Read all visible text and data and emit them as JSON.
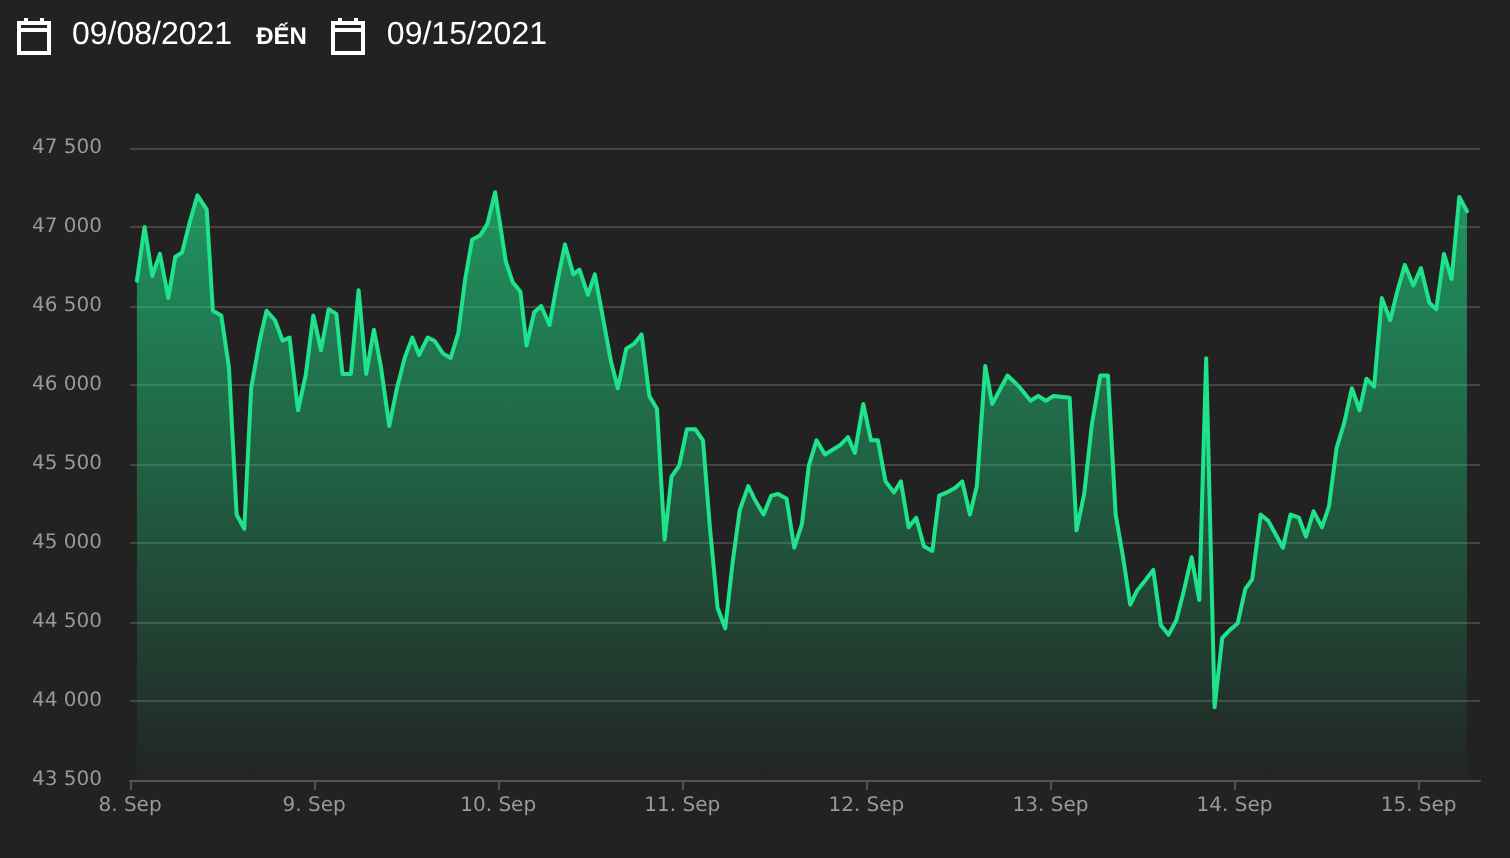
{
  "chart_data": {
    "type": "area",
    "annotations": [
      "09/08/2021",
      "ĐẾN",
      "09/15/2021"
    ],
    "x": [
      "2021-09-08T00:54",
      "2021-09-08T01:54",
      "2021-09-08T02:54",
      "2021-09-08T03:54",
      "2021-09-08T05:00",
      "2021-09-08T05:54",
      "2021-09-08T06:48",
      "2021-09-08T07:54",
      "2021-09-08T08:48",
      "2021-09-08T10:00",
      "2021-09-08T10:48",
      "2021-09-08T11:54",
      "2021-09-08T12:54",
      "2021-09-08T13:54",
      "2021-09-08T14:54",
      "2021-09-08T15:48",
      "2021-09-08T16:54",
      "2021-09-08T17:48",
      "2021-09-08T18:54",
      "2021-09-08T19:54",
      "2021-09-08T20:48",
      "2021-09-08T21:54",
      "2021-09-08T22:54",
      "2021-09-08T23:54",
      "2021-09-09T00:54",
      "2021-09-09T01:54",
      "2021-09-09T02:54",
      "2021-09-09T03:42",
      "2021-09-09T04:48",
      "2021-09-09T05:48",
      "2021-09-09T06:48",
      "2021-09-09T07:48",
      "2021-09-09T08:42",
      "2021-09-09T09:48",
      "2021-09-09T10:48",
      "2021-09-09T11:48",
      "2021-09-09T12:48",
      "2021-09-09T13:42",
      "2021-09-09T14:48",
      "2021-09-09T15:42",
      "2021-09-09T16:48",
      "2021-09-09T17:48",
      "2021-09-09T18:48",
      "2021-09-09T19:42",
      "2021-09-09T20:36",
      "2021-09-09T21:42",
      "2021-09-09T22:36",
      "2021-09-09T23:36",
      "2021-09-10T01:00",
      "2021-09-10T01:54",
      "2021-09-10T02:54",
      "2021-09-10T03:42",
      "2021-09-10T04:42",
      "2021-09-10T05:36",
      "2021-09-10T06:42",
      "2021-09-10T07:42",
      "2021-09-10T08:42",
      "2021-09-10T09:48",
      "2021-09-10T10:36",
      "2021-09-10T11:42",
      "2021-09-10T12:36",
      "2021-09-10T13:36",
      "2021-09-10T14:42",
      "2021-09-10T15:36",
      "2021-09-10T16:42",
      "2021-09-10T17:42",
      "2021-09-10T18:42",
      "2021-09-10T19:42",
      "2021-09-10T20:42",
      "2021-09-10T21:42",
      "2021-09-10T22:36",
      "2021-09-10T23:36",
      "2021-09-11T00:36",
      "2021-09-11T01:42",
      "2021-09-11T02:42",
      "2021-09-11T03:36",
      "2021-09-11T04:36",
      "2021-09-11T05:36",
      "2021-09-11T06:36",
      "2021-09-11T07:30",
      "2021-09-11T08:36",
      "2021-09-11T09:30",
      "2021-09-11T10:36",
      "2021-09-11T11:36",
      "2021-09-11T12:30",
      "2021-09-11T13:36",
      "2021-09-11T14:36",
      "2021-09-11T15:36",
      "2021-09-11T16:30",
      "2021-09-11T17:30",
      "2021-09-11T18:36",
      "2021-09-11T19:36",
      "2021-09-11T20:36",
      "2021-09-11T21:36",
      "2021-09-11T22:30",
      "2021-09-11T23:36",
      "2021-09-12T00:36",
      "2021-09-12T01:30",
      "2021-09-12T02:30",
      "2021-09-12T03:36",
      "2021-09-12T04:30",
      "2021-09-12T05:30",
      "2021-09-12T06:30",
      "2021-09-12T07:30",
      "2021-09-12T08:36",
      "2021-09-12T09:30",
      "2021-09-12T10:30",
      "2021-09-12T11:36",
      "2021-09-12T12:30",
      "2021-09-12T13:30",
      "2021-09-12T14:24",
      "2021-09-12T15:30",
      "2021-09-12T16:24",
      "2021-09-12T18:24",
      "2021-09-12T19:54",
      "2021-09-12T21:24",
      "2021-09-12T22:24",
      "2021-09-12T23:24",
      "2021-09-13T00:24",
      "2021-09-13T02:30",
      "2021-09-13T03:24",
      "2021-09-13T04:24",
      "2021-09-13T05:24",
      "2021-09-13T06:30",
      "2021-09-13T07:30",
      "2021-09-13T08:30",
      "2021-09-13T09:24",
      "2021-09-13T10:24",
      "2021-09-13T11:18",
      "2021-09-13T12:18",
      "2021-09-13T13:24",
      "2021-09-13T14:24",
      "2021-09-13T15:24",
      "2021-09-13T16:24",
      "2021-09-13T17:24",
      "2021-09-13T18:24",
      "2021-09-13T19:24",
      "2021-09-13T20:18",
      "2021-09-13T21:24",
      "2021-09-13T22:24",
      "2021-09-13T23:24",
      "2021-09-14T00:24",
      "2021-09-14T01:24",
      "2021-09-14T02:18",
      "2021-09-14T03:24",
      "2021-09-14T04:24",
      "2021-09-14T05:18",
      "2021-09-14T06:18",
      "2021-09-14T07:18",
      "2021-09-14T08:24",
      "2021-09-14T09:18",
      "2021-09-14T10:18",
      "2021-09-14T11:24",
      "2021-09-14T12:18",
      "2021-09-14T13:18",
      "2021-09-14T14:18",
      "2021-09-14T15:18",
      "2021-09-14T16:18",
      "2021-09-14T17:12",
      "2021-09-14T18:12",
      "2021-09-14T19:12",
      "2021-09-14T20:18",
      "2021-09-14T21:12",
      "2021-09-14T22:12",
      "2021-09-14T23:18",
      "2021-09-15T00:18",
      "2021-09-15T01:24",
      "2021-09-15T02:18",
      "2021-09-15T03:18",
      "2021-09-15T04:18",
      "2021-09-15T05:18",
      "2021-09-15T06:18"
    ],
    "series": [
      {
        "color": "#1ee38a",
        "values": [
          46660,
          47000,
          46690,
          46830,
          46550,
          46810,
          46840,
          47050,
          47200,
          47110,
          46470,
          46440,
          46110,
          45180,
          45090,
          45980,
          46280,
          46470,
          46410,
          46280,
          46300,
          45840,
          46060,
          46440,
          46220,
          46480,
          46450,
          46070,
          46070,
          46600,
          46070,
          46350,
          46120,
          45740,
          45980,
          46170,
          46300,
          46190,
          46300,
          46280,
          46200,
          46170,
          46330,
          46670,
          46920,
          46950,
          47020,
          47220,
          46780,
          46650,
          46590,
          46250,
          46460,
          46500,
          46380,
          46650,
          46890,
          46700,
          46730,
          46570,
          46700,
          46440,
          46150,
          45980,
          46230,
          46260,
          46320,
          45930,
          45850,
          45020,
          45420,
          45490,
          45720,
          45720,
          45650,
          45100,
          44590,
          44460,
          44890,
          45210,
          45360,
          45270,
          45180,
          45300,
          45310,
          45280,
          44970,
          45120,
          45490,
          45650,
          45560,
          45590,
          45620,
          45670,
          45570,
          45880,
          45650,
          45650,
          45390,
          45320,
          45390,
          45100,
          45160,
          44980,
          44950,
          45300,
          45320,
          45350,
          45390,
          45180,
          45360,
          46120,
          45880,
          46060,
          45990,
          45900,
          45930,
          45900,
          45930,
          45920,
          45080,
          45310,
          45750,
          46060,
          46060,
          45180,
          44930,
          44610,
          44700,
          44760,
          44830,
          44480,
          44420,
          44510,
          44700,
          44910,
          44640,
          46170,
          43960,
          44400,
          44450,
          44490,
          44710,
          44770,
          45180,
          45140,
          45060,
          44970,
          45180,
          45160,
          45040,
          45200,
          45100,
          45230,
          45600,
          45760,
          45980,
          45840,
          46040,
          45990,
          46550,
          46410,
          46590,
          46760,
          46630,
          46740,
          46520,
          46480,
          46830,
          46670,
          47190,
          47100
        ]
      }
    ],
    "xlim": [
      "2021-09-08",
      "2021-09-15T08:00"
    ],
    "xticks": [
      {
        "value": "2021-09-08",
        "label": "8. Sep"
      },
      {
        "value": "2021-09-09",
        "label": "9. Sep"
      },
      {
        "value": "2021-09-10",
        "label": "10. Sep"
      },
      {
        "value": "2021-09-11",
        "label": "11. Sep"
      },
      {
        "value": "2021-09-12",
        "label": "12. Sep"
      },
      {
        "value": "2021-09-13",
        "label": "13. Sep"
      },
      {
        "value": "2021-09-14",
        "label": "14. Sep"
      },
      {
        "value": "2021-09-15",
        "label": "15. Sep"
      }
    ],
    "ylim": [
      43500,
      47500
    ],
    "yticks": [
      {
        "value": 43500,
        "label": "43 500"
      },
      {
        "value": 44000,
        "label": "44 000"
      },
      {
        "value": 44500,
        "label": "44 500"
      },
      {
        "value": 45000,
        "label": "45 000"
      },
      {
        "value": 45500,
        "label": "45 500"
      },
      {
        "value": 46000,
        "label": "46 000"
      },
      {
        "value": 46500,
        "label": "46 500"
      },
      {
        "value": 47000,
        "label": "47 000"
      },
      {
        "value": 47500,
        "label": "47 500"
      }
    ],
    "grid": "y",
    "marker": "none",
    "line_style": "solid"
  }
}
